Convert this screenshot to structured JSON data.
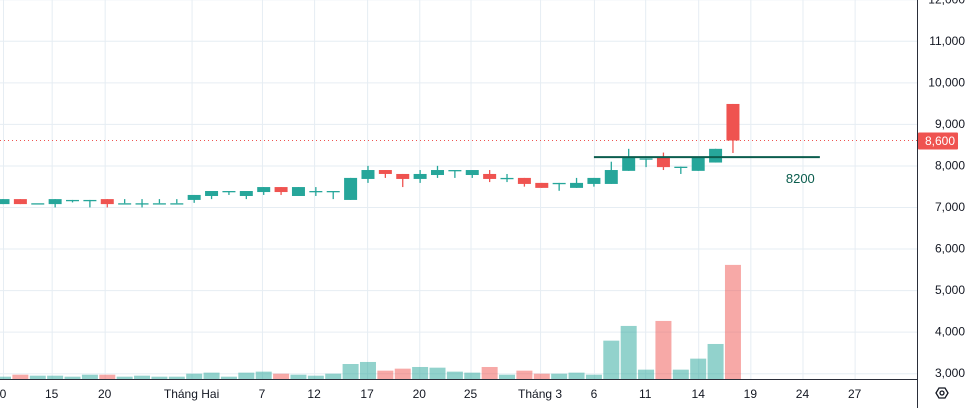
{
  "chart_data": {
    "type": "candlestick",
    "title": "",
    "colors": {
      "up": "#26a69a",
      "down": "#ef5350",
      "grid": "#e6edf3",
      "level_line": "#0b5d4e",
      "last_price": "#ef5350"
    },
    "y_axis": {
      "ylim": [
        3000,
        12000
      ],
      "ticks": [
        "12,000",
        "11,000",
        "10,000",
        "9,000",
        "8,000",
        "7,000",
        "6,000",
        "5,000",
        "4,000",
        "3,000"
      ],
      "tick_values": [
        12000,
        11000,
        10000,
        9000,
        8000,
        7000,
        6000,
        5000,
        4000,
        3000
      ]
    },
    "x_axis": {
      "tick_labels": [
        "0",
        "15",
        "20",
        "Tháng Hai",
        "7",
        "12",
        "17",
        "20",
        "25",
        "Tháng 3",
        "6",
        "11",
        "14",
        "19",
        "24",
        "27"
      ],
      "tick_bar_index": [
        0,
        2.8,
        5.85,
        10.85,
        14.9,
        17.9,
        20.95,
        23.95,
        26.9,
        30.9,
        34.0,
        36.95,
        40.0,
        43.0,
        46.0,
        49.0
      ]
    },
    "last_price": {
      "value": 8600,
      "label": "8,600"
    },
    "level": {
      "value": 8200,
      "label": "8200",
      "from_bar": 34.0,
      "to_bar": 47.0
    },
    "candles": [
      {
        "o": 7070,
        "h": 7190,
        "l": 7070,
        "c": 7190
      },
      {
        "o": 7190,
        "h": 7190,
        "l": 7070,
        "c": 7070
      },
      {
        "o": 7090,
        "h": 7090,
        "l": 7090,
        "c": 7090
      },
      {
        "o": 7070,
        "h": 7190,
        "l": 6990,
        "c": 7190
      },
      {
        "o": 7170,
        "h": 7170,
        "l": 7110,
        "c": 7170
      },
      {
        "o": 7170,
        "h": 7170,
        "l": 6990,
        "c": 7170
      },
      {
        "o": 7190,
        "h": 7190,
        "l": 6990,
        "c": 7070
      },
      {
        "o": 7090,
        "h": 7190,
        "l": 7090,
        "c": 7090
      },
      {
        "o": 7090,
        "h": 7190,
        "l": 6990,
        "c": 7090
      },
      {
        "o": 7090,
        "h": 7190,
        "l": 7090,
        "c": 7090
      },
      {
        "o": 7090,
        "h": 7190,
        "l": 7090,
        "c": 7090
      },
      {
        "o": 7170,
        "h": 7290,
        "l": 7100,
        "c": 7290
      },
      {
        "o": 7265,
        "h": 7385,
        "l": 7190,
        "c": 7385
      },
      {
        "o": 7385,
        "h": 7385,
        "l": 7290,
        "c": 7385
      },
      {
        "o": 7265,
        "h": 7385,
        "l": 7190,
        "c": 7385
      },
      {
        "o": 7360,
        "h": 7480,
        "l": 7290,
        "c": 7480
      },
      {
        "o": 7480,
        "h": 7480,
        "l": 7290,
        "c": 7360
      },
      {
        "o": 7265,
        "h": 7480,
        "l": 7265,
        "c": 7480
      },
      {
        "o": 7385,
        "h": 7480,
        "l": 7265,
        "c": 7385
      },
      {
        "o": 7385,
        "h": 7385,
        "l": 7190,
        "c": 7385
      },
      {
        "o": 7170,
        "h": 7700,
        "l": 7170,
        "c": 7700
      },
      {
        "o": 7675,
        "h": 7990,
        "l": 7580,
        "c": 7890
      },
      {
        "o": 7890,
        "h": 7890,
        "l": 7700,
        "c": 7795
      },
      {
        "o": 7795,
        "h": 7795,
        "l": 7480,
        "c": 7675
      },
      {
        "o": 7675,
        "h": 7890,
        "l": 7580,
        "c": 7795
      },
      {
        "o": 7770,
        "h": 7990,
        "l": 7700,
        "c": 7890
      },
      {
        "o": 7890,
        "h": 7890,
        "l": 7700,
        "c": 7890
      },
      {
        "o": 7770,
        "h": 7890,
        "l": 7700,
        "c": 7890
      },
      {
        "o": 7795,
        "h": 7890,
        "l": 7600,
        "c": 7675
      },
      {
        "o": 7700,
        "h": 7795,
        "l": 7600,
        "c": 7700
      },
      {
        "o": 7700,
        "h": 7700,
        "l": 7490,
        "c": 7555
      },
      {
        "o": 7580,
        "h": 7580,
        "l": 7460,
        "c": 7460
      },
      {
        "o": 7580,
        "h": 7580,
        "l": 7390,
        "c": 7580
      },
      {
        "o": 7460,
        "h": 7700,
        "l": 7460,
        "c": 7580
      },
      {
        "o": 7555,
        "h": 7700,
        "l": 7490,
        "c": 7700
      },
      {
        "o": 7555,
        "h": 8090,
        "l": 7555,
        "c": 7890
      },
      {
        "o": 7870,
        "h": 8400,
        "l": 7870,
        "c": 8190
      },
      {
        "o": 8170,
        "h": 8170,
        "l": 7960,
        "c": 8170
      },
      {
        "o": 8190,
        "h": 8310,
        "l": 7890,
        "c": 7960
      },
      {
        "o": 7970,
        "h": 7970,
        "l": 7795,
        "c": 7970
      },
      {
        "o": 7870,
        "h": 8190,
        "l": 7870,
        "c": 8190
      },
      {
        "o": 8070,
        "h": 8400,
        "l": 8070,
        "c": 8400
      },
      {
        "o": 9480,
        "h": 9480,
        "l": 8300,
        "c": 8600
      }
    ],
    "volume": [
      56,
      104,
      80,
      80,
      56,
      104,
      104,
      56,
      80,
      56,
      56,
      128,
      153,
      56,
      153,
      177,
      128,
      104,
      80,
      128,
      361,
      410,
      201,
      249,
      289,
      273,
      177,
      153,
      289,
      104,
      201,
      128,
      128,
      153,
      104,
      923,
      1277,
      225,
      1397,
      225,
      490,
      843,
      2746
    ]
  }
}
